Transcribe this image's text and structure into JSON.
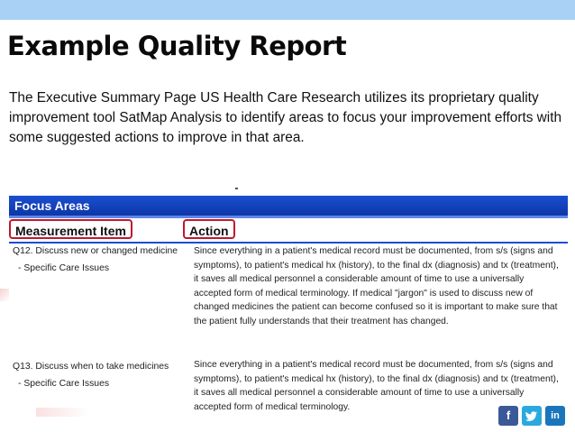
{
  "title": "Example Quality Report",
  "intro": "The Executive Summary Page US Health Care Research utilizes its proprietary quality improvement tool SatMap Analysis to identify areas to focus your improvement efforts with some suggested actions to improve in that area.",
  "report": {
    "section_title": "Focus Areas",
    "col_measurement": "Measurement Item",
    "col_action": "Action",
    "items": [
      {
        "question": "Q12. Discuss new or changed medicine",
        "category": "- Specific Care Issues",
        "action": "Since everything in a patient's medical record must be documented, from s/s (signs and symptoms), to patient's medical hx (history), to the final dx (diagnosis) and tx (treatment), it saves all medical personnel a considerable amount of time to use a universally accepted form of medical terminology.  If medical \"jargon\" is used to discuss new of changed medicines the patient can become confused so it is important to make sure that the patient fully understands that their treatment has changed."
      },
      {
        "question": "Q13. Discuss when to take medicines",
        "category": "- Specific Care Issues",
        "action": "Since everything in a patient's medical record must be documented, from s/s (signs and symptoms), to patient's medical hx (history), to the final dx (diagnosis) and tx (treatment), it saves all medical personnel a considerable amount of time to use a universally accepted form of medical terminology."
      }
    ]
  },
  "social": {
    "facebook_glyph": "f",
    "twitter_glyph": "t",
    "linkedin_glyph": "in",
    "facebook_color": "#3b5998",
    "twitter_color": "#2aa9e0",
    "linkedin_color": "#1b75bb"
  }
}
